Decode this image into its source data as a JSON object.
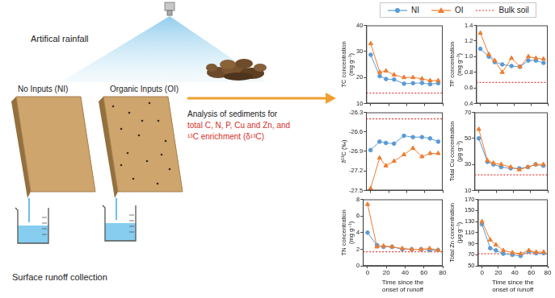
{
  "diagram": {
    "rainfall_label": "Artifical rainfall",
    "treatments": [
      "No Inputs (NI)",
      "Organic Inputs (OI)"
    ],
    "collection_label": "Surface runoff collection",
    "analysis_lines": [
      {
        "text": "Analysis of sediments for",
        "color": "#222222"
      },
      {
        "text": "total C, N, P, Cu and Zn, and",
        "color": "#d9302a"
      },
      {
        "text": "¹³C enrichment (δ¹³C)",
        "color": "#d9302a"
      }
    ]
  },
  "legend": "top",
  "chart_data": [
    {
      "type": "line",
      "y_label": "TC concentration (mg g⁻¹)",
      "tick_labels": "y",
      "grid": false,
      "x": [
        0,
        10,
        17,
        26,
        37,
        47,
        57,
        66,
        75
      ],
      "xlim": [
        -5,
        80
      ],
      "xticks": [
        0,
        20,
        40,
        60,
        80
      ],
      "ylim": [
        10,
        40
      ],
      "yticks": [
        10,
        20,
        30,
        40
      ],
      "series": [
        {
          "name": "NI",
          "color": "#5b9bd5",
          "marker": "circle",
          "line_style": "solid",
          "values": [
            28.7,
            20.5,
            19.4,
            19.2,
            17.6,
            17.8,
            17.9,
            17.4,
            17.8
          ]
        },
        {
          "name": "OI",
          "color": "#ed7d31",
          "marker": "triangle",
          "line_style": "solid",
          "values": [
            33,
            22,
            22.5,
            21,
            20,
            20,
            19.5,
            18.8,
            18.8
          ]
        }
      ],
      "reference": {
        "name": "Bulk soil",
        "color": "#e8372c",
        "line_style": "dotted",
        "value": 14
      }
    },
    {
      "type": "line",
      "y_label": "TP concentration (mg g⁻¹)",
      "tick_labels": "y",
      "grid": false,
      "x": [
        0,
        10,
        17,
        26,
        37,
        47,
        57,
        66,
        75
      ],
      "xlim": [
        -5,
        80
      ],
      "xticks": [
        0,
        20,
        40,
        60,
        80
      ],
      "ylim": [
        0.4,
        1.4
      ],
      "yticks": [
        0.4,
        0.6,
        0.8,
        {
          "value": 1,
          "label": "1.0"
        },
        1.2,
        1.4
      ],
      "series": [
        {
          "name": "NI",
          "color": "#5b9bd5",
          "marker": "circle",
          "line_style": "solid",
          "values": [
            1.1,
            1.0,
            0.93,
            0.9,
            0.88,
            0.87,
            0.95,
            0.95,
            0.92
          ]
        },
        {
          "name": "OI",
          "color": "#ed7d31",
          "marker": "triangle",
          "line_style": "solid",
          "values": [
            1.3,
            1.03,
            0.95,
            0.8,
            0.98,
            0.87,
            1.0,
            0.98,
            0.97
          ]
        }
      ],
      "reference": {
        "name": "Bulk soil",
        "color": "#e8372c",
        "line_style": "dotted",
        "value": 0.67
      }
    },
    {
      "type": "line",
      "y_label": "δ¹³C (‰)",
      "tick_labels": "y",
      "grid": false,
      "x": [
        0,
        10,
        17,
        26,
        37,
        47,
        57,
        66,
        75
      ],
      "xlim": [
        -5,
        80
      ],
      "xticks": [
        0,
        20,
        40,
        60,
        80
      ],
      "ylim": [
        -27.5,
        -26.3
      ],
      "yticks": [
        -27.5,
        -27.2,
        -26.9,
        -26.6,
        -26.3
      ],
      "series": [
        {
          "name": "NI",
          "color": "#5b9bd5",
          "marker": "circle",
          "line_style": "solid",
          "values": [
            -26.88,
            -26.75,
            -26.77,
            -26.78,
            -26.66,
            -26.68,
            -26.68,
            -26.7,
            -26.75
          ]
        },
        {
          "name": "OI",
          "color": "#ed7d31",
          "marker": "triangle",
          "line_style": "solid",
          "values": [
            -27.47,
            -27.0,
            -27.12,
            -27.05,
            -26.95,
            -26.85,
            -26.98,
            -26.93,
            -26.93
          ]
        }
      ],
      "reference": {
        "name": "Bulk soil",
        "color": "#e8372c",
        "line_style": "dotted",
        "value": -26.4
      }
    },
    {
      "type": "line",
      "y_label": "Total Cu concentration (μg g⁻¹)",
      "tick_labels": "y",
      "grid": false,
      "x": [
        0,
        10,
        17,
        26,
        37,
        47,
        57,
        66,
        75
      ],
      "xlim": [
        -5,
        80
      ],
      "xticks": [
        0,
        20,
        40,
        60,
        80
      ],
      "ylim": [
        10,
        70
      ],
      "yticks": [
        10,
        30,
        50,
        70
      ],
      "series": [
        {
          "name": "NI",
          "color": "#5b9bd5",
          "marker": "circle",
          "line_style": "solid",
          "values": [
            50,
            32,
            30,
            28,
            27,
            27,
            28,
            30,
            29
          ]
        },
        {
          "name": "OI",
          "color": "#ed7d31",
          "marker": "triangle",
          "line_style": "solid",
          "values": [
            57,
            33,
            31,
            30,
            28,
            26,
            28,
            30,
            30
          ]
        }
      ],
      "reference": {
        "name": "Bulk soil",
        "color": "#e8372c",
        "line_style": "dotted",
        "value": 22
      }
    },
    {
      "type": "line",
      "y_label": "TN concentration (mg g⁻¹)",
      "x_label": "Time since the onset of runoff",
      "grid": false,
      "x": [
        0,
        10,
        17,
        26,
        37,
        47,
        57,
        66,
        75
      ],
      "xlim": [
        -5,
        80
      ],
      "xticks": [
        0,
        20,
        40,
        60,
        80
      ],
      "ylim": [
        0,
        8
      ],
      "yticks": [
        0,
        2,
        4,
        6,
        8
      ],
      "series": [
        {
          "name": "NI",
          "color": "#5b9bd5",
          "marker": "circle",
          "line_style": "solid",
          "values": [
            4.0,
            2.5,
            2.3,
            2.3,
            2.0,
            2.0,
            2.0,
            1.9,
            1.9
          ]
        },
        {
          "name": "OI",
          "color": "#ed7d31",
          "marker": "triangle",
          "line_style": "solid",
          "values": [
            7.4,
            2.3,
            2.4,
            2.3,
            2.1,
            2.0,
            2.0,
            2.1,
            1.9
          ]
        }
      ],
      "reference": {
        "name": "Bulk soil",
        "color": "#e8372c",
        "line_style": "dotted",
        "value": 1.7
      }
    },
    {
      "type": "line",
      "y_label": "Total Zn concentration (μg g⁻¹)",
      "x_label": "Time since the onset of runoff",
      "grid": false,
      "x": [
        0,
        10,
        17,
        26,
        37,
        47,
        57,
        66,
        75
      ],
      "xlim": [
        -5,
        80
      ],
      "xticks": [
        0,
        20,
        40,
        60,
        80
      ],
      "ylim": [
        50,
        170
      ],
      "yticks": [
        50,
        70,
        90,
        110,
        130,
        150,
        170
      ],
      "series": [
        {
          "name": "NI",
          "color": "#5b9bd5",
          "marker": "circle",
          "line_style": "solid",
          "values": [
            125,
            82,
            78,
            72,
            70,
            68,
            76,
            73,
            73
          ]
        },
        {
          "name": "OI",
          "color": "#ed7d31",
          "marker": "triangle",
          "line_style": "solid",
          "values": [
            130,
            97,
            88,
            78,
            74,
            72,
            78,
            75,
            75
          ]
        }
      ],
      "reference": {
        "name": "Bulk soil",
        "color": "#e8372c",
        "line_style": "dotted",
        "value": 72
      }
    }
  ]
}
